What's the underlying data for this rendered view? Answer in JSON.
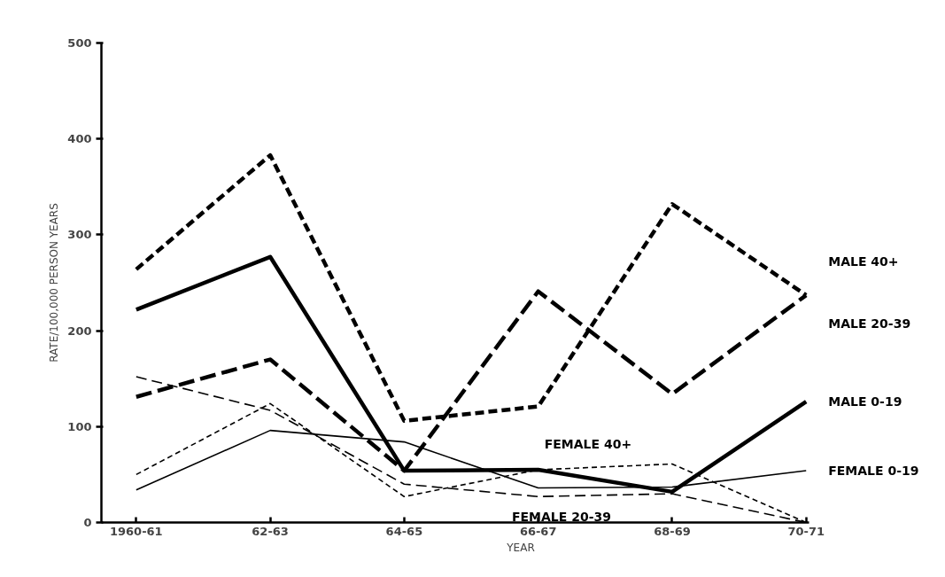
{
  "chart_data": {
    "type": "line",
    "xlabel": "YEAR",
    "ylabel": "RATE/100,000 PERSON YEARS",
    "categories": [
      "1960-61",
      "62-63",
      "64-65",
      "66-67",
      "68-69",
      "70-71"
    ],
    "ylim": [
      0,
      500
    ],
    "yticks": [
      0,
      100,
      200,
      300,
      400,
      500
    ],
    "grid": false,
    "marker": "none",
    "series": [
      {
        "name": "MALE 40+",
        "color": "#000000",
        "line_style": "dashed",
        "values": [
          264,
          383,
          106,
          121,
          332,
          237
        ]
      },
      {
        "name": "MALE 20-39",
        "color": "#000000",
        "line_style": "dashed",
        "values": [
          131,
          170,
          54,
          241,
          134,
          237
        ]
      },
      {
        "name": "MALE 0-19",
        "color": "#000000",
        "line_style": "solid",
        "values": [
          222,
          277,
          54,
          55,
          32,
          126
        ]
      },
      {
        "name": "FEMALE 40+",
        "color": "#000000",
        "line_style": "dashed",
        "values": [
          50,
          124,
          27,
          55,
          61,
          0
        ]
      },
      {
        "name": "FEMALE 0-19",
        "color": "#000000",
        "line_style": "solid",
        "values": [
          34,
          96,
          84,
          36,
          37,
          54
        ]
      },
      {
        "name": "FEMALE 20-39",
        "color": "#000000",
        "line_style": "dashed",
        "values": [
          152,
          117,
          40,
          27,
          30,
          0
        ]
      }
    ]
  }
}
